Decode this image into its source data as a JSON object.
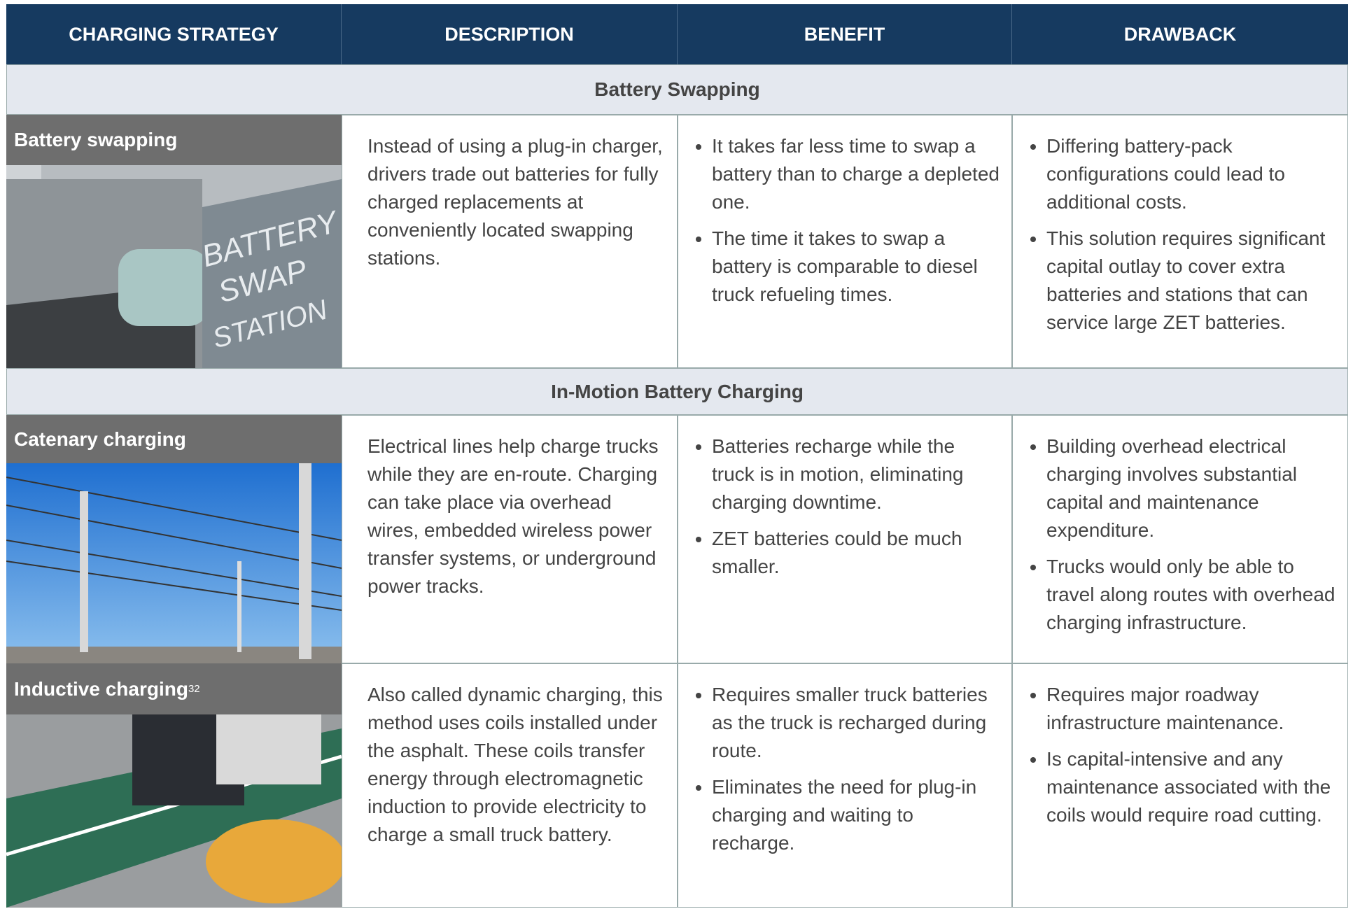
{
  "header": {
    "columns": [
      "CHARGING STRATEGY",
      "DESCRIPTION",
      "BENEFIT",
      "DRAWBACK"
    ]
  },
  "sections": [
    {
      "title": "Battery Swapping",
      "rows": [
        {
          "strategy": "Battery swapping",
          "description": "Instead of using a plug-in charger, drivers trade out batteries for fully charged replacements at conveniently located swapping stations.",
          "benefits": [
            "It takes far less time to swap a battery than to charge a depleted one.",
            "The time it takes to swap a battery is comparable to diesel truck refueling times."
          ],
          "drawbacks": [
            "Differing battery-pack configurations could lead to additional costs.",
            "This solution requires significant capital outlay to cover extra batteries and stations that can service large ZET batteries."
          ]
        }
      ]
    },
    {
      "title": "In-Motion Battery Charging",
      "rows": [
        {
          "strategy": "Catenary charging",
          "description": "Electrical lines help charge trucks while they are en-route. Charging can take place via overhead wires, embedded wireless power transfer systems, or underground power tracks.",
          "benefits": [
            "Batteries recharge while the truck is in motion, eliminating charging downtime.",
            "ZET batteries could be much smaller."
          ],
          "drawbacks": [
            "Building overhead electrical charging involves substantial capital and maintenance expenditure.",
            "Trucks would only be able to travel along routes with overhead charging infrastructure."
          ]
        },
        {
          "strategy": "Inductive charging",
          "footnote": "32",
          "description": "Also called dynamic charging, this method uses coils installed under the asphalt. These coils transfer energy through electromagnetic induction to provide electricity to charge a small truck battery.",
          "benefits": [
            "Requires smaller truck batteries as the truck is recharged during route.",
            "Eliminates the need for plug-in charging and waiting to recharge."
          ],
          "drawbacks": [
            "Requires major roadway infrastructure maintenance.",
            "Is capital-intensive and any maintenance associated with the coils would require road cutting."
          ]
        }
      ]
    }
  ]
}
